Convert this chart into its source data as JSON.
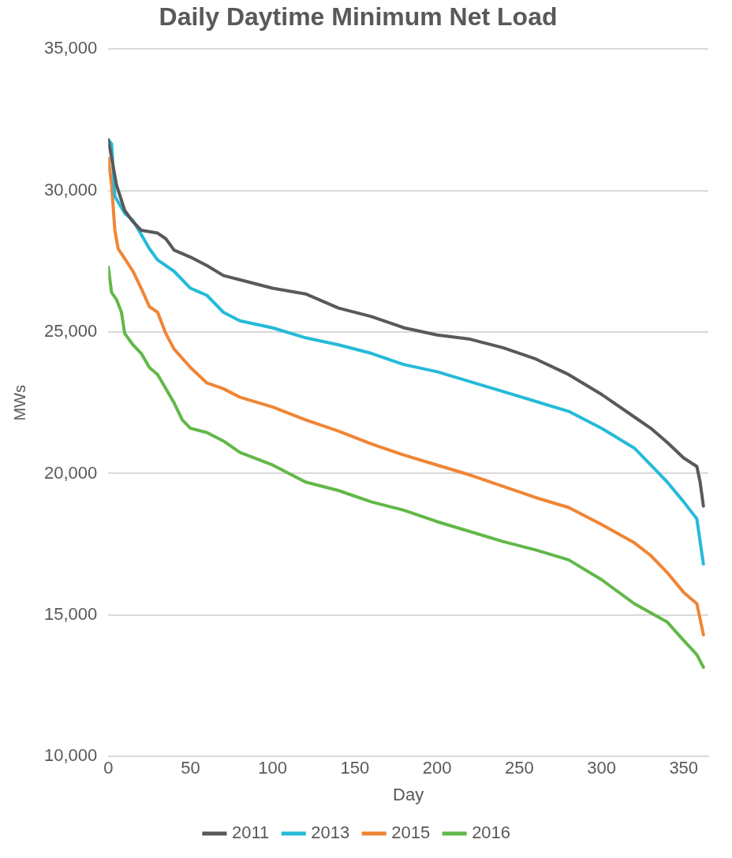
{
  "chart_data": {
    "type": "line",
    "title": "Daily Daytime Minimum Net Load",
    "xlabel": "Day",
    "ylabel": "MWs",
    "xlim": [
      0,
      365
    ],
    "xticks": [
      0,
      50,
      100,
      150,
      200,
      250,
      300,
      350
    ],
    "ylim": [
      10000,
      35000
    ],
    "yticks": [
      {
        "value": 10000,
        "label": "10,000"
      },
      {
        "value": 15000,
        "label": "15,000"
      },
      {
        "value": 20000,
        "label": "20,000"
      },
      {
        "value": 25000,
        "label": "25,000"
      },
      {
        "value": 30000,
        "label": "30,000"
      },
      {
        "value": 35000,
        "label": "35,000"
      }
    ],
    "grid": "y",
    "legend": "bottom",
    "marker": "none",
    "line_style": "solid",
    "series": [
      {
        "name": "2011",
        "color": "#595959",
        "x": [
          0,
          5,
          10,
          15,
          20,
          30,
          35,
          40,
          50,
          60,
          70,
          80,
          100,
          120,
          140,
          160,
          180,
          200,
          220,
          240,
          260,
          280,
          300,
          320,
          330,
          340,
          350,
          358,
          360,
          362
        ],
        "values": [
          31800,
          30200,
          29300,
          28900,
          28600,
          28500,
          28300,
          27900,
          27650,
          27350,
          27000,
          26850,
          26550,
          26350,
          25850,
          25550,
          25150,
          24900,
          24750,
          24450,
          24050,
          23500,
          22800,
          22000,
          21600,
          21100,
          20550,
          20250,
          19700,
          18850
        ]
      },
      {
        "name": "2013",
        "color": "#25bad9",
        "x": [
          0,
          2,
          4,
          8,
          10,
          15,
          20,
          25,
          30,
          40,
          50,
          60,
          70,
          80,
          100,
          120,
          140,
          160,
          180,
          200,
          220,
          240,
          260,
          280,
          300,
          320,
          330,
          340,
          350,
          358,
          362
        ],
        "values": [
          31800,
          31650,
          29800,
          29400,
          29200,
          28950,
          28450,
          27950,
          27550,
          27150,
          26550,
          26300,
          25700,
          25400,
          25150,
          24800,
          24550,
          24250,
          23850,
          23600,
          23250,
          22900,
          22550,
          22200,
          21600,
          20900,
          20300,
          19700,
          19000,
          18400,
          16800
        ]
      },
      {
        "name": "2015",
        "color": "#f08535",
        "x": [
          0,
          2,
          4,
          6,
          10,
          15,
          20,
          25,
          30,
          35,
          40,
          50,
          60,
          70,
          80,
          100,
          120,
          140,
          160,
          180,
          200,
          220,
          240,
          260,
          280,
          300,
          320,
          330,
          340,
          350,
          358,
          362
        ],
        "values": [
          31150,
          30200,
          28600,
          27950,
          27600,
          27150,
          26550,
          25900,
          25700,
          24950,
          24400,
          23750,
          23200,
          23000,
          22700,
          22350,
          21900,
          21500,
          21050,
          20650,
          20300,
          19950,
          19550,
          19150,
          18800,
          18200,
          17550,
          17100,
          16500,
          15800,
          15400,
          14300
        ]
      },
      {
        "name": "2016",
        "color": "#62b849",
        "x": [
          0,
          2,
          5,
          8,
          10,
          15,
          20,
          25,
          30,
          35,
          40,
          45,
          50,
          60,
          70,
          80,
          100,
          120,
          140,
          160,
          180,
          200,
          220,
          240,
          260,
          280,
          300,
          320,
          340,
          350,
          358,
          362
        ],
        "values": [
          27300,
          26400,
          26150,
          25700,
          24950,
          24550,
          24250,
          23750,
          23500,
          23000,
          22500,
          21900,
          21600,
          21450,
          21150,
          20750,
          20300,
          19700,
          19400,
          19000,
          18700,
          18300,
          17950,
          17600,
          17300,
          16950,
          16250,
          15400,
          14750,
          14100,
          13600,
          13150
        ]
      }
    ]
  }
}
